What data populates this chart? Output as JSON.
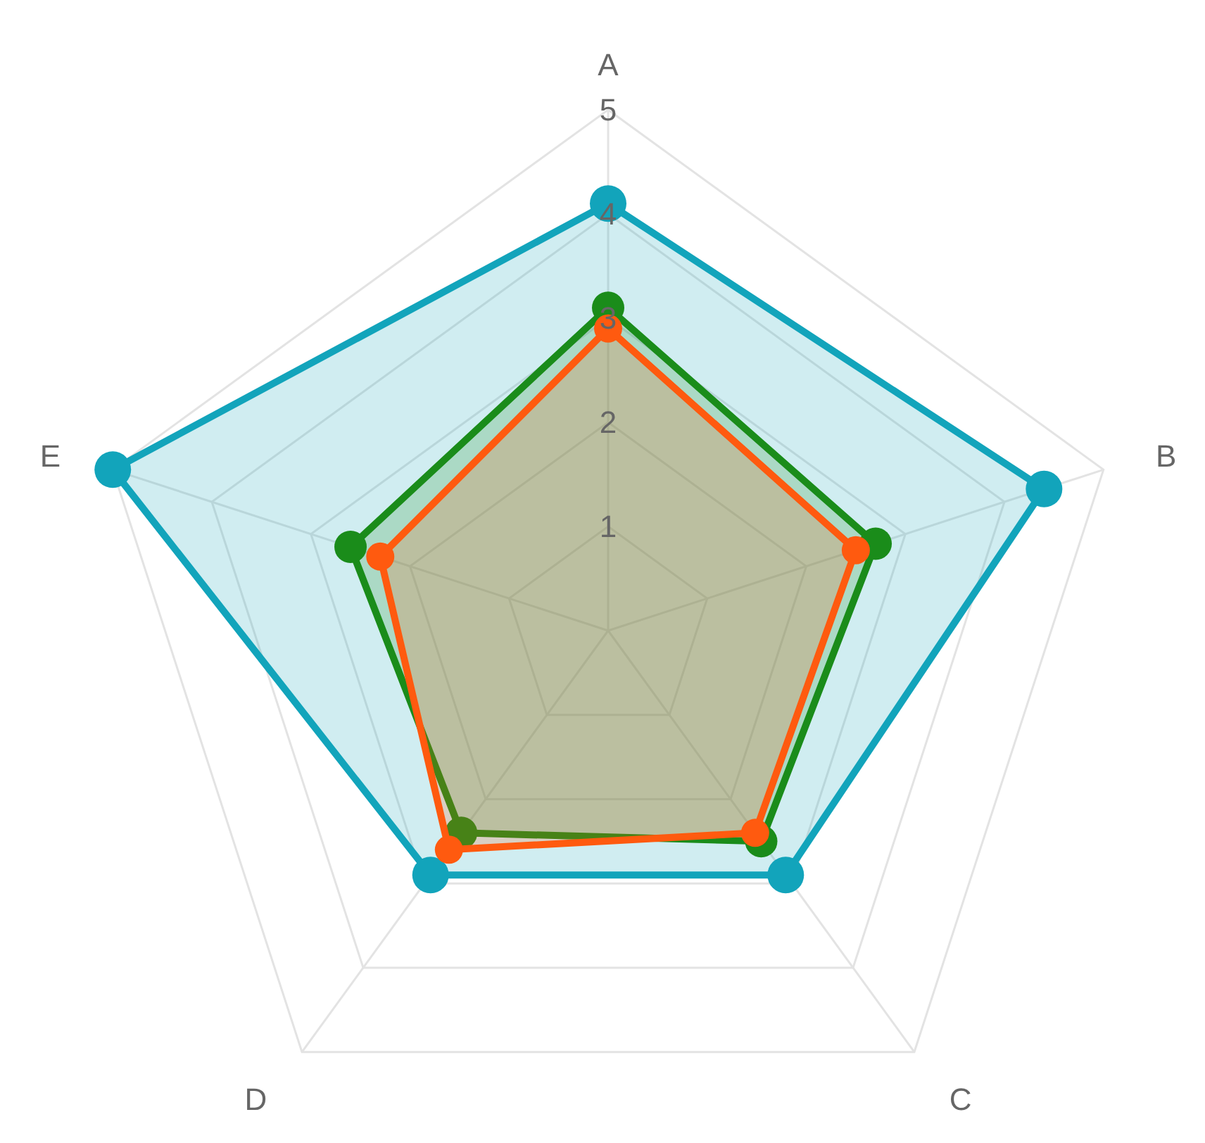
{
  "chart_data": {
    "type": "radar",
    "categories": [
      "A",
      "B",
      "C",
      "D",
      "E"
    ],
    "ylim": [
      0,
      5
    ],
    "yticks": [
      1,
      2,
      3,
      4,
      5
    ],
    "grid": true,
    "marker": "circle",
    "line_style": "solid",
    "series": [
      {
        "color": "#12a4bb",
        "values": [
          4.1,
          4.4,
          2.9,
          2.9,
          5
        ]
      },
      {
        "color": "#1a8c1a",
        "values": [
          3.1,
          2.7,
          2.5,
          2.4,
          2.6
        ]
      },
      {
        "color": "#ff5a0f",
        "values": [
          2.9,
          2.5,
          2.4,
          2.6,
          2.3
        ]
      }
    ]
  }
}
